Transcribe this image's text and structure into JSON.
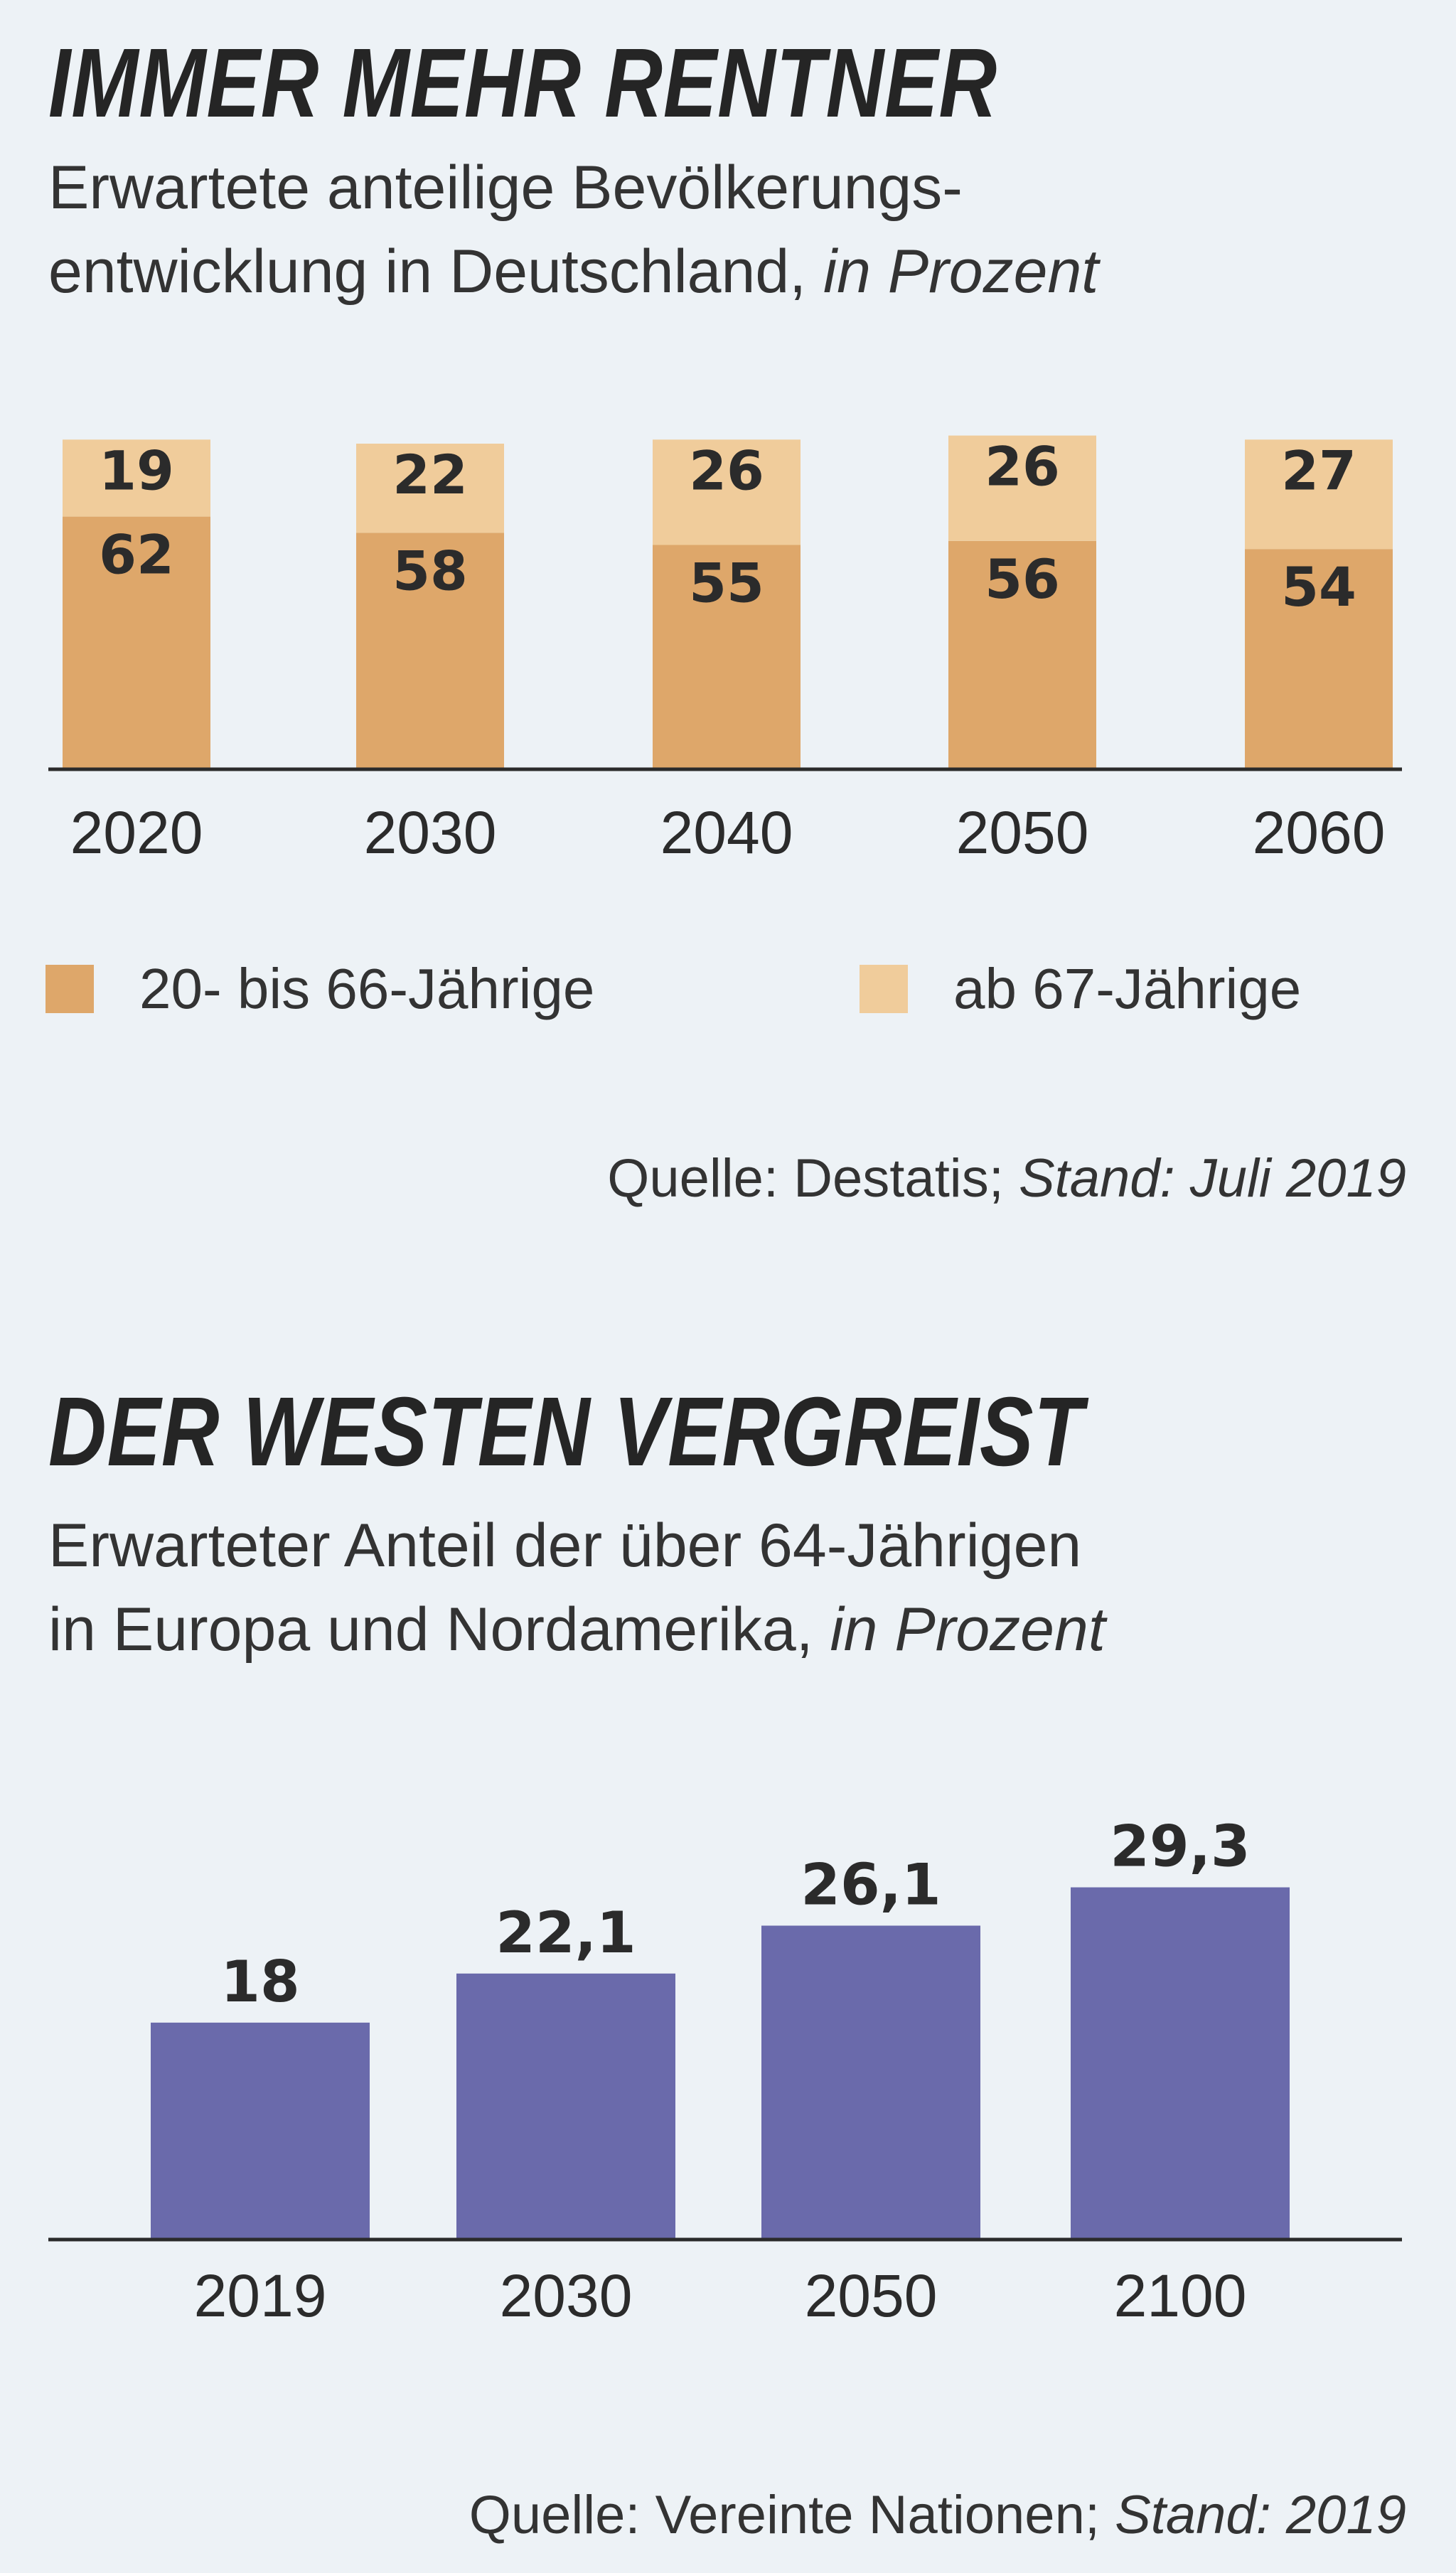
{
  "colors": {
    "working_age": "#dea76a",
    "retirees": "#f0cc9b",
    "west_bars": "#6a6aab",
    "axis": "#2b2b2b"
  },
  "chart1": {
    "title": "IMMER MEHR RENTNER",
    "subtitle_line1": "Erwartete anteilige Bevölkerungs-",
    "subtitle_line2": "entwicklung in Deutschland,",
    "subtitle_unit": "in Prozent",
    "source_label": "Quelle: Destatis;",
    "source_date": "Stand: Juli 2019",
    "legend": {
      "working_age": "20- bis 66-Jährige",
      "retirees": "ab 67-Jährige"
    }
  },
  "chart2": {
    "title": "DER WESTEN VERGREIST",
    "subtitle_line1": "Erwarteter Anteil der über 64-Jährigen",
    "subtitle_line2": "in Europa und Nordamerika,",
    "subtitle_unit": "in Prozent",
    "source_label": "Quelle: Vereinte Nationen;",
    "source_date": "Stand: 2019"
  },
  "chart_data": [
    {
      "type": "bar",
      "stacked": true,
      "categories": [
        "2020",
        "2030",
        "2040",
        "2050",
        "2060"
      ],
      "series": [
        {
          "name": "20- bis 66-Jährige",
          "values": [
            62,
            58,
            55,
            56,
            54
          ],
          "labels": [
            "62",
            "58",
            "55",
            "56",
            "54"
          ]
        },
        {
          "name": "ab 67-Jährige",
          "values": [
            19,
            22,
            26,
            26,
            27
          ],
          "labels": [
            "19",
            "22",
            "26",
            "26",
            "27"
          ]
        }
      ],
      "title": "IMMER MEHR RENTNER",
      "xlabel": "",
      "ylabel": "",
      "ylim": [
        0,
        81
      ],
      "legend_position": "bottom"
    },
    {
      "type": "bar",
      "categories": [
        "2019",
        "2030",
        "2050",
        "2100"
      ],
      "values": [
        18,
        22.1,
        26.1,
        29.3
      ],
      "labels": [
        "18",
        "22,1",
        "26,1",
        "29,3"
      ],
      "title": "DER WESTEN VERGREIST",
      "xlabel": "",
      "ylabel": "",
      "ylim": [
        0,
        30
      ]
    }
  ]
}
